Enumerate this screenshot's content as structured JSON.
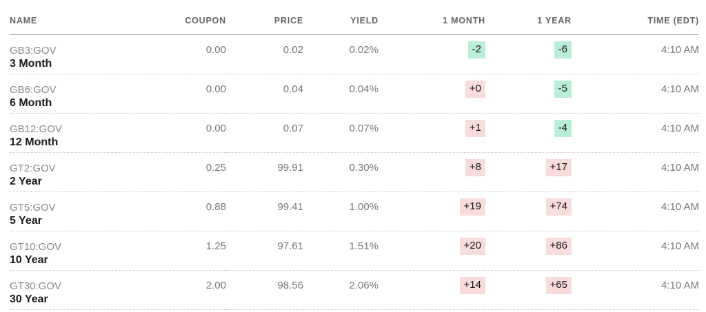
{
  "colors": {
    "up_badge_bg": "#f8dcdc",
    "down_badge_bg": "#b9edd7",
    "text_dark": "#1b1b1d",
    "num_gray": "#767678",
    "ticker_gray": "#89898b",
    "header_gray": "#636366",
    "header_rule": "#949494",
    "row_rule": "#c6c6c6"
  },
  "table": {
    "columns": [
      {
        "key": "name",
        "label": "NAME",
        "align": "left"
      },
      {
        "key": "coupon",
        "label": "COUPON",
        "align": "right"
      },
      {
        "key": "price",
        "label": "PRICE",
        "align": "right"
      },
      {
        "key": "yield",
        "label": "YIELD",
        "align": "right"
      },
      {
        "key": "m1",
        "label": "1 MONTH",
        "align": "right"
      },
      {
        "key": "y1",
        "label": "1 YEAR",
        "align": "right"
      },
      {
        "key": "time",
        "label": "TIME (EDT)",
        "align": "right"
      }
    ],
    "rows": [
      {
        "ticker": "GB3:GOV",
        "maturity": "3 Month",
        "coupon": "0.00",
        "price": "0.02",
        "yield": "0.02%",
        "m1": "-2",
        "m1_dir": "down",
        "y1": "-6",
        "y1_dir": "down",
        "time": "4:10 AM"
      },
      {
        "ticker": "GB6:GOV",
        "maturity": "6 Month",
        "coupon": "0.00",
        "price": "0.04",
        "yield": "0.04%",
        "m1": "+0",
        "m1_dir": "up",
        "y1": "-5",
        "y1_dir": "down",
        "time": "4:10 AM"
      },
      {
        "ticker": "GB12:GOV",
        "maturity": "12 Month",
        "coupon": "0.00",
        "price": "0.07",
        "yield": "0.07%",
        "m1": "+1",
        "m1_dir": "up",
        "y1": "-4",
        "y1_dir": "down",
        "time": "4:10 AM"
      },
      {
        "ticker": "GT2:GOV",
        "maturity": "2 Year",
        "coupon": "0.25",
        "price": "99.91",
        "yield": "0.30%",
        "m1": "+8",
        "m1_dir": "up",
        "y1": "+17",
        "y1_dir": "up",
        "time": "4:10 AM"
      },
      {
        "ticker": "GT5:GOV",
        "maturity": "5 Year",
        "coupon": "0.88",
        "price": "99.41",
        "yield": "1.00%",
        "m1": "+19",
        "m1_dir": "up",
        "y1": "+74",
        "y1_dir": "up",
        "time": "4:10 AM"
      },
      {
        "ticker": "GT10:GOV",
        "maturity": "10 Year",
        "coupon": "1.25",
        "price": "97.61",
        "yield": "1.51%",
        "m1": "+20",
        "m1_dir": "up",
        "y1": "+86",
        "y1_dir": "up",
        "time": "4:10 AM"
      },
      {
        "ticker": "GT30:GOV",
        "maturity": "30 Year",
        "coupon": "2.00",
        "price": "98.56",
        "yield": "2.06%",
        "m1": "+14",
        "m1_dir": "up",
        "y1": "+65",
        "y1_dir": "up",
        "time": "4:10 AM"
      }
    ]
  }
}
